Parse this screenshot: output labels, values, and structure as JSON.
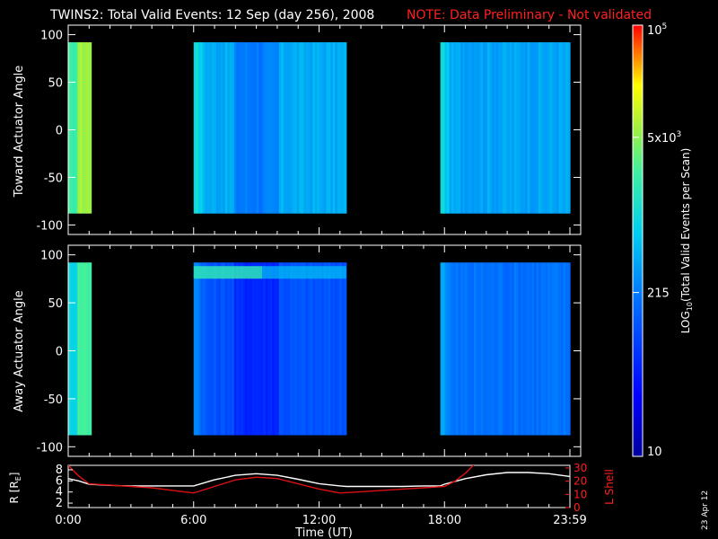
{
  "title": "TWINS2: Total Valid Events: 12 Sep (day 256), 2008",
  "note": "NOTE: Data Preliminary - Not validated",
  "date_stamp": "23 Apr 12",
  "colors": {
    "note": "#ff2020",
    "axes": "#ffffff",
    "r_line": "#ffffff",
    "l_shell_line": "#dd1010"
  },
  "chart_data": [
    {
      "type": "heatmap",
      "ylabel": "Toward Actuator Angle",
      "ylim": [
        -110,
        110
      ],
      "yticks": [
        "100",
        "50",
        "0",
        "-50",
        "-100"
      ],
      "y_range_data": [
        -88,
        92
      ],
      "blocks": [
        {
          "start_hour": 0.0,
          "end_hour": 1.1,
          "level": 0.7
        },
        {
          "start_hour": 6.0,
          "end_hour": 13.3,
          "level": 0.46
        },
        {
          "start_hour": 17.8,
          "end_hour": 24.0,
          "level": 0.45
        }
      ]
    },
    {
      "type": "heatmap",
      "ylabel": "Away Actuator Angle",
      "ylim": [
        -110,
        110
      ],
      "yticks": [
        "100",
        "50",
        "0",
        "-50",
        "-100"
      ],
      "y_range_data": [
        -88,
        92
      ],
      "blocks": [
        {
          "start_hour": 0.0,
          "end_hour": 1.1,
          "level": 0.6
        },
        {
          "start_hour": 6.0,
          "end_hour": 13.3,
          "level": 0.3
        },
        {
          "start_hour": 17.8,
          "end_hour": 24.0,
          "level": 0.36
        }
      ]
    },
    {
      "type": "line",
      "xlabel": "Time (UT)",
      "xticks": [
        "0:00",
        "6:00",
        "12:00",
        "18:00",
        "23:59"
      ],
      "xtick_hours": [
        0,
        6,
        12,
        18,
        24
      ],
      "ylabel_left": "R [R",
      "ylabel_left_sub": "E",
      "ylabel_left_end": "]",
      "ylabel_right": "L Shell",
      "yticks_left": [
        "8",
        "6",
        "4",
        "2"
      ],
      "yticks_right": [
        "30",
        "20",
        "10",
        "0"
      ],
      "ylim_left": [
        1.2,
        8.8
      ],
      "ylim_right": [
        0,
        32
      ],
      "series": [
        {
          "name": "R [RE]",
          "axis": "left",
          "x": [
            0,
            0.5,
            1,
            2,
            3,
            4,
            5,
            6,
            7,
            8,
            9,
            10,
            11,
            12,
            13,
            13.3,
            14,
            15,
            16,
            17,
            17.8,
            18,
            19,
            20,
            21,
            22,
            23,
            24
          ],
          "y": [
            6.4,
            6.0,
            5.4,
            5.2,
            5.1,
            5.1,
            5.1,
            5.1,
            6.2,
            7.0,
            7.3,
            7.0,
            6.3,
            5.5,
            5.1,
            5.0,
            5.0,
            5.0,
            5.0,
            5.1,
            5.1,
            5.4,
            6.4,
            7.1,
            7.5,
            7.5,
            7.3,
            6.8
          ]
        },
        {
          "name": "L Shell",
          "axis": "right",
          "x": [
            0,
            0.5,
            1,
            2,
            3,
            4,
            5,
            6,
            7,
            8,
            9,
            10,
            11,
            12,
            13,
            14,
            15,
            16,
            17,
            18,
            18.5,
            19,
            19.5
          ],
          "y": [
            32,
            24,
            18,
            17,
            16,
            15,
            13,
            11,
            16,
            21,
            23,
            22,
            18,
            14,
            11,
            12,
            13,
            14,
            15,
            16,
            20,
            26,
            34
          ]
        }
      ]
    }
  ],
  "colorbar": {
    "label": "LOG",
    "label_sub": "10",
    "label_rest": "(Total Valid Events per Scan)",
    "ticks": [
      {
        "text": "10",
        "sup": "5"
      },
      {
        "text": "5x10",
        "sup": "3"
      },
      {
        "text": "215",
        "sup": ""
      },
      {
        "text": "10",
        "sup": ""
      }
    ],
    "levels": [
      1.0,
      0.74,
      0.38,
      0.0
    ]
  }
}
